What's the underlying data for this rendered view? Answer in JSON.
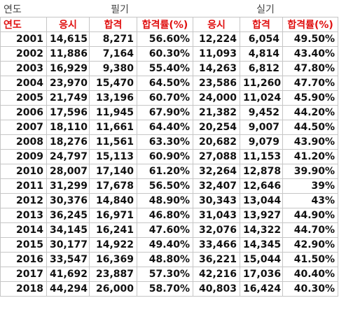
{
  "header": {
    "year": "연도",
    "written": "필기",
    "practical": "실기"
  },
  "columns": [
    "연도",
    "응시",
    "합격",
    "합격률(%)",
    "응시",
    "합격",
    "합격률(%)"
  ],
  "rows": [
    [
      "2001",
      "14,615",
      "8,271",
      "56.60%",
      "12,224",
      "6,054",
      "49.50%"
    ],
    [
      "2002",
      "11,886",
      "7,164",
      "60.30%",
      "11,093",
      "4,814",
      "43.40%"
    ],
    [
      "2003",
      "16,929",
      "9,380",
      "55.40%",
      "14,263",
      "6,812",
      "47.80%"
    ],
    [
      "2004",
      "23,970",
      "15,470",
      "64.50%",
      "23,586",
      "11,260",
      "47.70%"
    ],
    [
      "2005",
      "21,749",
      "13,196",
      "60.70%",
      "24,000",
      "11,024",
      "45.90%"
    ],
    [
      "2006",
      "17,596",
      "11,945",
      "67.90%",
      "21,382",
      "9,452",
      "44.20%"
    ],
    [
      "2007",
      "18,110",
      "11,661",
      "64.40%",
      "20,254",
      "9,007",
      "44.50%"
    ],
    [
      "2008",
      "18,276",
      "11,561",
      "63.30%",
      "20,682",
      "9,079",
      "43.90%"
    ],
    [
      "2009",
      "24,797",
      "15,113",
      "60.90%",
      "27,088",
      "11,153",
      "41.20%"
    ],
    [
      "2010",
      "28,007",
      "17,140",
      "61.20%",
      "32,264",
      "12,878",
      "39.90%"
    ],
    [
      "2011",
      "31,299",
      "17,678",
      "56.50%",
      "32,407",
      "12,646",
      "39%"
    ],
    [
      "2012",
      "30,376",
      "14,840",
      "48.90%",
      "30,343",
      "13,044",
      "43%"
    ],
    [
      "2013",
      "36,245",
      "16,971",
      "46.80%",
      "31,043",
      "13,927",
      "44.90%"
    ],
    [
      "2014",
      "34,145",
      "16,241",
      "47.60%",
      "32,076",
      "14,322",
      "44.70%"
    ],
    [
      "2015",
      "30,177",
      "14,922",
      "49.40%",
      "33,466",
      "14,345",
      "42.90%"
    ],
    [
      "2016",
      "33,547",
      "16,369",
      "48.80%",
      "36,221",
      "15,044",
      "41.50%"
    ],
    [
      "2017",
      "41,692",
      "23,887",
      "57.30%",
      "42,216",
      "17,036",
      "40.40%"
    ],
    [
      "2018",
      "44,294",
      "26,000",
      "58.70%",
      "40,803",
      "16,424",
      "40.30%"
    ]
  ]
}
